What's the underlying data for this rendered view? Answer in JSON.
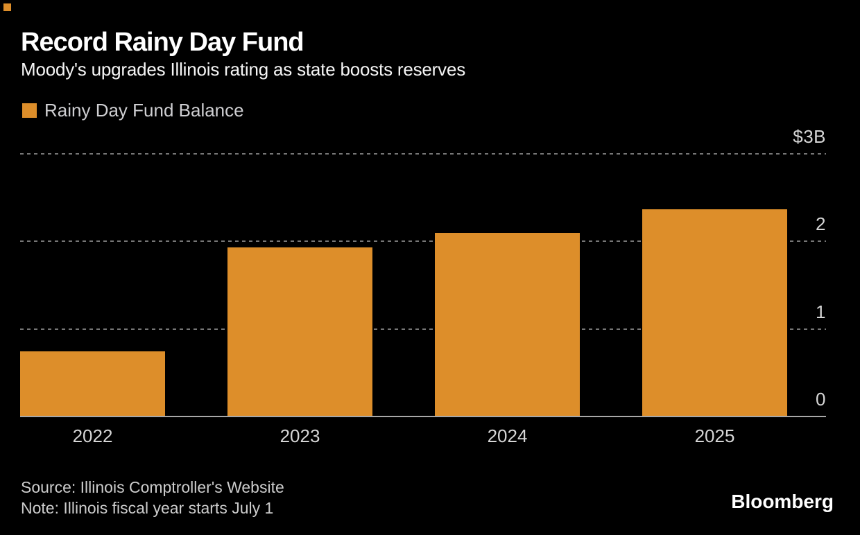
{
  "header": {
    "title": "Record Rainy Day Fund",
    "subtitle": "Moody's upgrades Illinois rating as state boosts reserves"
  },
  "legend": {
    "label": "Rainy Day Fund Balance",
    "swatch_color": "#DD8E2A"
  },
  "chart_data": {
    "type": "bar",
    "title": "Record Rainy Day Fund",
    "subtitle": "Moody's upgrades Illinois rating as state boosts reserves",
    "series_name": "Rainy Day Fund Balance",
    "categories": [
      "2022",
      "2023",
      "2024",
      "2025"
    ],
    "values": [
      0.74,
      1.92,
      2.09,
      2.36
    ],
    "unit": "billions of US dollars",
    "xlabel": "",
    "ylabel": "",
    "ylim": [
      0,
      3
    ],
    "yticks": [
      {
        "value": 3,
        "label": "$3B"
      },
      {
        "value": 2,
        "label": "2"
      },
      {
        "value": 1,
        "label": "1"
      },
      {
        "value": 0,
        "label": "0"
      }
    ],
    "bar_color": "#DD8E2A",
    "background_color": "#000000",
    "gridlines": "dashed horizontal, labels above lines on right side",
    "legend_position": "top-left",
    "axis_side": "right"
  },
  "footer": {
    "source": "Source: Illinois Comptroller's Website",
    "note": "Note: Illinois fiscal year starts July 1",
    "brand": "Bloomberg"
  }
}
